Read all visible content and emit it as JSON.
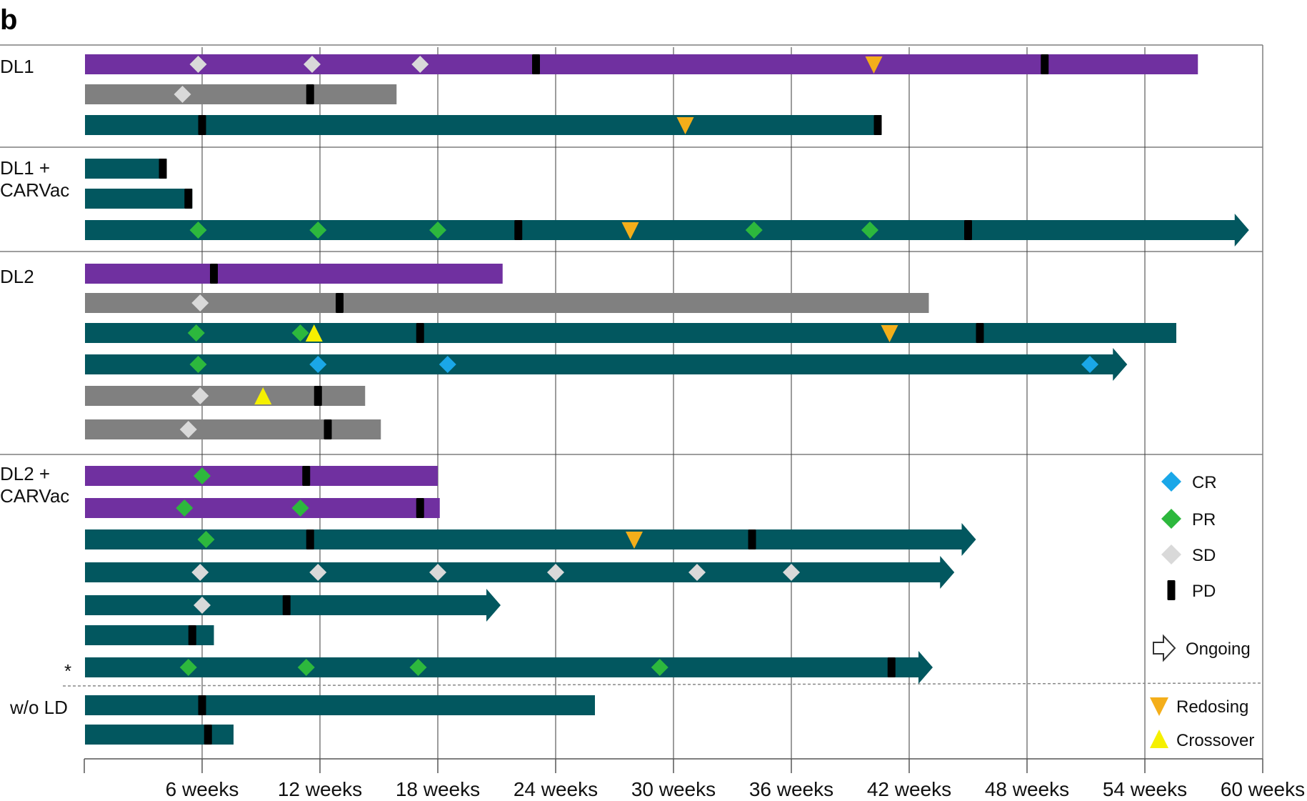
{
  "panel_label": "b",
  "colors": {
    "purple": "#7030a0",
    "gray": "#808080",
    "teal": "#02575f",
    "CR": "#1aa7e8",
    "PR": "#2db83d",
    "SD": "#d9d9d9",
    "PD": "#000000",
    "Redosing": "#f4ae1a",
    "Crossover": "#f5f000"
  },
  "chart_data": {
    "type": "swimmer",
    "x_unit": "weeks",
    "xlim": [
      0,
      60
    ],
    "grid": true,
    "x_ticks": [
      {
        "value": 6,
        "label": "6 weeks"
      },
      {
        "value": 12,
        "label": "12 weeks"
      },
      {
        "value": 18,
        "label": "18 weeks"
      },
      {
        "value": 24,
        "label": "24 weeks"
      },
      {
        "value": 30,
        "label": "30 weeks"
      },
      {
        "value": 36,
        "label": "36 weeks"
      },
      {
        "value": 42,
        "label": "42 weeks"
      },
      {
        "value": 48,
        "label": "48 weeks"
      },
      {
        "value": 54,
        "label": "54 weeks"
      },
      {
        "value": 60,
        "label": "60 weeks"
      }
    ],
    "groups": [
      {
        "label_lines": [
          "DL1"
        ],
        "rows": [
          0,
          1,
          2
        ]
      },
      {
        "label_lines": [
          "DL1 +",
          "CARVac"
        ],
        "rows": [
          3,
          4,
          5
        ]
      },
      {
        "label_lines": [
          "DL2"
        ],
        "rows": [
          6,
          7,
          8,
          9,
          10,
          11
        ]
      },
      {
        "label_lines": [
          "DL2 +",
          "CARVac"
        ],
        "rows": [
          12,
          13,
          14,
          15,
          16,
          17,
          18
        ]
      },
      {
        "label_lines": [
          "w/o LD"
        ],
        "rows": [
          19,
          20
        ]
      }
    ],
    "row_note": {
      "row": 18,
      "text": "*"
    },
    "patients": [
      {
        "color": "purple",
        "end": 56.7,
        "ongoing": false,
        "events": [
          {
            "type": "SD",
            "x": 5.8
          },
          {
            "type": "SD",
            "x": 11.6
          },
          {
            "type": "SD",
            "x": 17.1
          },
          {
            "type": "PD",
            "x": 23.0
          },
          {
            "type": "Redosing",
            "x": 40.2
          },
          {
            "type": "PD",
            "x": 48.9
          }
        ]
      },
      {
        "color": "gray",
        "end": 15.9,
        "ongoing": false,
        "events": [
          {
            "type": "SD",
            "x": 5.0
          },
          {
            "type": "PD",
            "x": 11.5
          }
        ]
      },
      {
        "color": "teal",
        "end": 40.6,
        "ongoing": false,
        "events": [
          {
            "type": "PD",
            "x": 6.0
          },
          {
            "type": "Redosing",
            "x": 30.6
          },
          {
            "type": "PD",
            "x": 40.4
          }
        ]
      },
      {
        "color": "teal",
        "end": 4.2,
        "ongoing": false,
        "events": [
          {
            "type": "PD",
            "x": 4.0
          }
        ]
      },
      {
        "color": "teal",
        "end": 5.5,
        "ongoing": false,
        "events": [
          {
            "type": "PD",
            "x": 5.3
          }
        ]
      },
      {
        "color": "teal",
        "end": 59.3,
        "ongoing": true,
        "events": [
          {
            "type": "PR",
            "x": 5.8
          },
          {
            "type": "PR",
            "x": 11.9
          },
          {
            "type": "PR",
            "x": 18.0
          },
          {
            "type": "PD",
            "x": 22.1
          },
          {
            "type": "Redosing",
            "x": 27.8
          },
          {
            "type": "PR",
            "x": 34.1
          },
          {
            "type": "PR",
            "x": 40.0
          },
          {
            "type": "PD",
            "x": 45.0
          }
        ]
      },
      {
        "color": "purple",
        "end": 21.3,
        "ongoing": false,
        "events": [
          {
            "type": "PD",
            "x": 6.6
          }
        ]
      },
      {
        "color": "gray",
        "end": 43.0,
        "ongoing": false,
        "events": [
          {
            "type": "SD",
            "x": 5.9
          },
          {
            "type": "PD",
            "x": 13.0
          }
        ]
      },
      {
        "color": "teal",
        "end": 55.6,
        "ongoing": false,
        "events": [
          {
            "type": "PR",
            "x": 5.7
          },
          {
            "type": "PR",
            "x": 11.0
          },
          {
            "type": "Crossover",
            "x": 11.7
          },
          {
            "type": "PD",
            "x": 17.1
          },
          {
            "type": "Redosing",
            "x": 41.0
          },
          {
            "type": "PD",
            "x": 45.6
          }
        ]
      },
      {
        "color": "teal",
        "end": 53.1,
        "ongoing": true,
        "events": [
          {
            "type": "PR",
            "x": 5.8
          },
          {
            "type": "CR",
            "x": 11.9
          },
          {
            "type": "CR",
            "x": 18.5
          },
          {
            "type": "CR",
            "x": 51.2
          }
        ]
      },
      {
        "color": "gray",
        "end": 14.3,
        "ongoing": false,
        "events": [
          {
            "type": "SD",
            "x": 5.9
          },
          {
            "type": "Crossover",
            "x": 9.1
          },
          {
            "type": "PD",
            "x": 11.9
          }
        ]
      },
      {
        "color": "gray",
        "end": 15.1,
        "ongoing": false,
        "events": [
          {
            "type": "SD",
            "x": 5.3
          },
          {
            "type": "PD",
            "x": 12.4
          }
        ]
      },
      {
        "color": "purple",
        "end": 18.0,
        "ongoing": false,
        "events": [
          {
            "type": "PR",
            "x": 6.0
          },
          {
            "type": "PD",
            "x": 11.3
          }
        ]
      },
      {
        "color": "purple",
        "end": 18.1,
        "ongoing": false,
        "events": [
          {
            "type": "PR",
            "x": 5.1
          },
          {
            "type": "PR",
            "x": 11.0
          },
          {
            "type": "PD",
            "x": 17.1
          }
        ]
      },
      {
        "color": "teal",
        "end": 45.4,
        "ongoing": true,
        "events": [
          {
            "type": "PR",
            "x": 6.2
          },
          {
            "type": "PD",
            "x": 11.5
          },
          {
            "type": "Redosing",
            "x": 28.0
          },
          {
            "type": "PD",
            "x": 34.0
          }
        ]
      },
      {
        "color": "teal",
        "end": 44.3,
        "ongoing": true,
        "events": [
          {
            "type": "SD",
            "x": 5.9
          },
          {
            "type": "SD",
            "x": 11.9
          },
          {
            "type": "SD",
            "x": 18.0
          },
          {
            "type": "SD",
            "x": 24.0
          },
          {
            "type": "SD",
            "x": 31.2
          },
          {
            "type": "SD",
            "x": 36.0
          }
        ]
      },
      {
        "color": "teal",
        "end": 21.2,
        "ongoing": true,
        "events": [
          {
            "type": "SD",
            "x": 6.0
          },
          {
            "type": "PD",
            "x": 10.3
          }
        ]
      },
      {
        "color": "teal",
        "end": 6.6,
        "ongoing": false,
        "events": [
          {
            "type": "PD",
            "x": 5.5
          }
        ]
      },
      {
        "color": "teal",
        "end": 43.2,
        "ongoing": true,
        "events": [
          {
            "type": "PR",
            "x": 5.3
          },
          {
            "type": "PR",
            "x": 11.3
          },
          {
            "type": "PR",
            "x": 17.0
          },
          {
            "type": "PR",
            "x": 29.3
          },
          {
            "type": "PD",
            "x": 41.1
          }
        ]
      },
      {
        "color": "teal",
        "end": 26.0,
        "ongoing": false,
        "events": [
          {
            "type": "PD",
            "x": 6.0
          }
        ]
      },
      {
        "color": "teal",
        "end": 7.6,
        "ongoing": false,
        "events": [
          {
            "type": "PD",
            "x": 6.3
          }
        ]
      }
    ],
    "legend": [
      {
        "type": "CR",
        "label": "CR"
      },
      {
        "type": "PR",
        "label": "PR"
      },
      {
        "type": "SD",
        "label": "SD"
      },
      {
        "type": "PD",
        "label": "PD"
      },
      {
        "type": "Ongoing",
        "label": "Ongoing"
      },
      {
        "type": "Redosing",
        "label": "Redosing"
      },
      {
        "type": "Crossover",
        "label": "Crossover"
      }
    ]
  }
}
